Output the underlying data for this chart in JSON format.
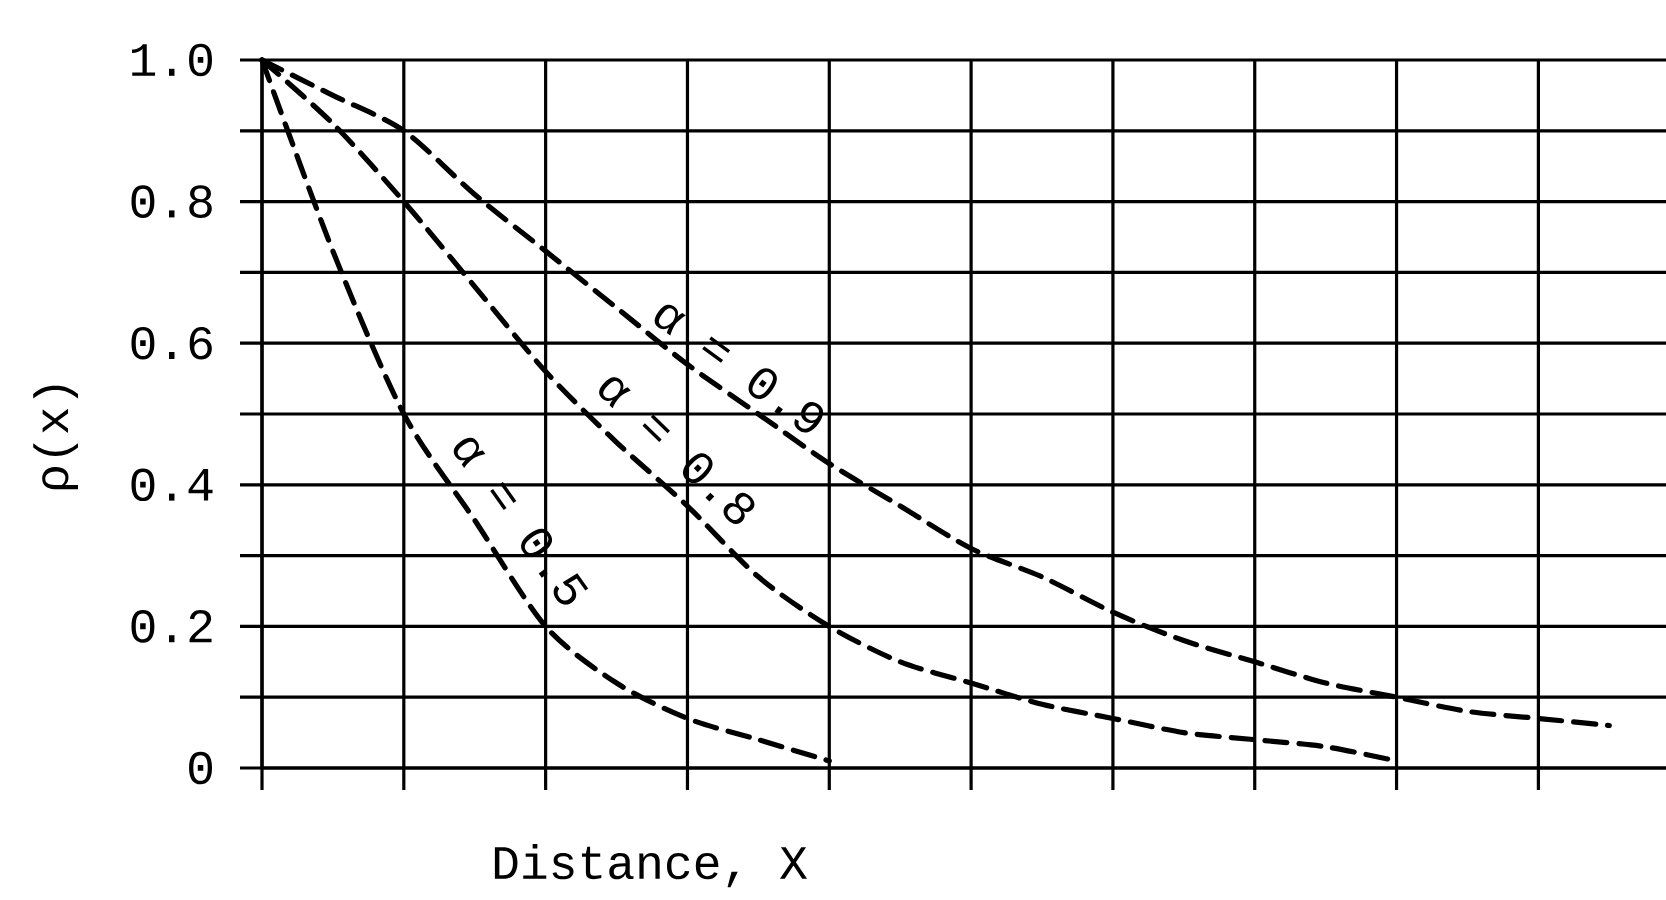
{
  "chart_data": {
    "type": "line",
    "xlabel": "Distance, X",
    "ylabel": "ρ(x)",
    "categories": [
      null,
      null,
      null,
      null,
      null,
      null,
      null,
      null,
      null,
      null,
      null,
      null,
      null,
      null,
      null,
      null,
      null,
      null,
      null,
      null
    ],
    "series": [
      {
        "name": "α = 0.9",
        "color": "#000000",
        "values": [
          1.0,
          0.95,
          0.9,
          0.81,
          0.73,
          0.65,
          0.57,
          0.5,
          0.43,
          0.37,
          0.31,
          0.27,
          0.22,
          0.18,
          0.15,
          0.12,
          0.1,
          0.08,
          0.07,
          0.06
        ]
      },
      {
        "name": "α = 0.8",
        "color": "#000000",
        "values": [
          1.0,
          0.91,
          0.8,
          0.68,
          0.56,
          0.46,
          0.37,
          0.27,
          0.2,
          0.15,
          0.12,
          0.09,
          0.07,
          0.05,
          0.04,
          0.03,
          0.01,
          null,
          null,
          null
        ]
      },
      {
        "name": "α = 0.5",
        "color": "#000000",
        "values": [
          1.0,
          0.73,
          0.5,
          0.35,
          0.2,
          0.12,
          0.07,
          0.04,
          0.01,
          null,
          null,
          null,
          null,
          null,
          null,
          null,
          null,
          null,
          null,
          null
        ]
      }
    ],
    "ylim": [
      0,
      1
    ],
    "yticks": [
      0,
      {
        "value": 0.1,
        "label": null
      },
      0.2,
      {
        "value": 0.3,
        "label": null
      },
      0.4,
      {
        "value": 0.5,
        "label": null
      },
      0.6,
      {
        "value": 0.7,
        "label": null
      },
      0.8,
      {
        "value": 0.9,
        "label": null
      },
      {
        "value": 1,
        "label": "1.0"
      }
    ],
    "grid": true,
    "line_style": "dashed"
  }
}
